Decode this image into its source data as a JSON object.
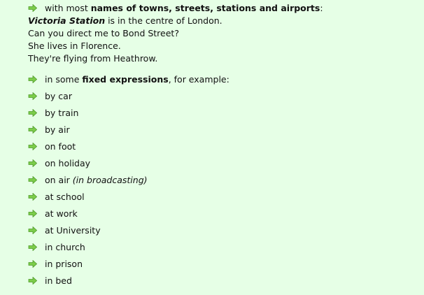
{
  "rule1": {
    "prefix": "with most ",
    "bold": "names of towns, streets, stations and airports",
    "suffix": ":",
    "examples": [
      {
        "bi": "Victoria Station",
        "rest": " is in the centre of London."
      },
      {
        "bi": "",
        "rest": "Can you direct me to Bond Street?"
      },
      {
        "bi": "",
        "rest": "She lives in Florence."
      },
      {
        "bi": "",
        "rest": "They're flying from Heathrow."
      }
    ]
  },
  "rule2": {
    "prefix": "in some ",
    "bold": "fixed expressions",
    "suffix": ", for example:"
  },
  "items": [
    {
      "text": "by car"
    },
    {
      "text": "by train"
    },
    {
      "text": "by air"
    },
    {
      "text": "on foot"
    },
    {
      "text": "on holiday"
    },
    {
      "text": "on air ",
      "note": "(in broadcasting)"
    },
    {
      "text": "at school"
    },
    {
      "text": "at work"
    },
    {
      "text": "at University"
    },
    {
      "text": "in church"
    },
    {
      "text": "in prison"
    },
    {
      "text": "in bed"
    }
  ],
  "colors": {
    "background": "#e6ffe6",
    "arrow": "#6fbf3f"
  },
  "icon": "green-arrow-icon"
}
